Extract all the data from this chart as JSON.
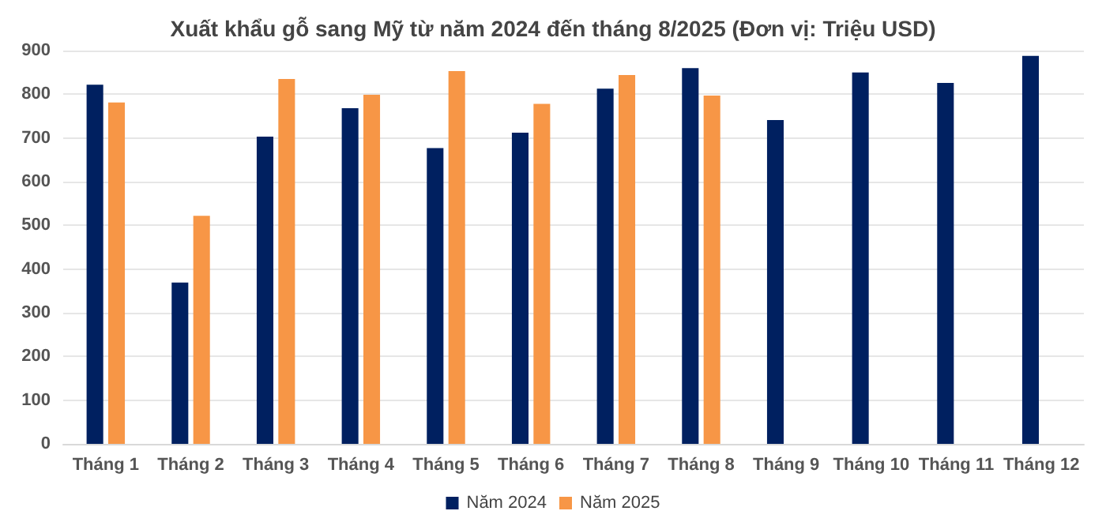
{
  "chart_data": {
    "type": "bar",
    "title": "Xuất khẩu gỗ sang Mỹ từ năm 2024 đến tháng 8/2025 (Đơn vị: Triệu USD)",
    "categories": [
      "Tháng 1",
      "Tháng 2",
      "Tháng 3",
      "Tháng 4",
      "Tháng 5",
      "Tháng 6",
      "Tháng 7",
      "Tháng 8",
      "Tháng 9",
      "Tháng 10",
      "Tháng 11",
      "Tháng 12"
    ],
    "series": [
      {
        "name": "Năm 2024",
        "color": "#002060",
        "values": [
          822,
          369,
          703,
          768,
          677,
          712,
          813,
          860,
          741,
          850,
          826,
          888
        ]
      },
      {
        "name": "Năm 2025",
        "color": "#f79646",
        "values": [
          781,
          522,
          835,
          799,
          853,
          778,
          844,
          797,
          null,
          null,
          null,
          null
        ]
      }
    ],
    "ylim": [
      0,
      900
    ],
    "yticks": [
      0,
      100,
      200,
      300,
      400,
      500,
      600,
      700,
      800,
      900
    ],
    "grid": "y",
    "legend": "bottom"
  }
}
